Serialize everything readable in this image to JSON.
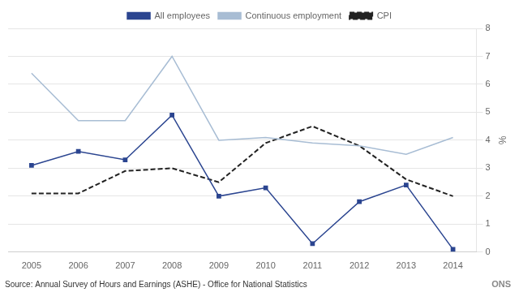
{
  "chart_data": {
    "type": "line",
    "x": [
      2005,
      2006,
      2007,
      2008,
      2009,
      2010,
      2011,
      2012,
      2013,
      2014
    ],
    "xlim": [
      2004.5,
      2014.5
    ],
    "xticks": [
      2005,
      2006,
      2007,
      2008,
      2009,
      2010,
      2011,
      2012,
      2013,
      2014
    ],
    "ylim": [
      0,
      8
    ],
    "yticks": [
      0,
      1,
      2,
      3,
      4,
      5,
      6,
      7,
      8
    ],
    "ylabel": "%",
    "series": [
      {
        "name": "All employees",
        "color": "#2B4590",
        "marker": "square",
        "line_style": "solid",
        "values": [
          3.1,
          3.6,
          3.3,
          4.9,
          2.0,
          2.3,
          0.3,
          1.8,
          2.4,
          0.1
        ]
      },
      {
        "name": "Continuous employment",
        "color": "#A8BDD4",
        "marker": "none",
        "line_style": "solid",
        "values": [
          6.4,
          4.7,
          4.7,
          7.0,
          4.0,
          4.1,
          3.9,
          3.8,
          3.5,
          4.1
        ]
      },
      {
        "name": "CPI",
        "color": "#222222",
        "marker": "none",
        "line_style": "dashed",
        "values": [
          2.1,
          2.1,
          2.9,
          3.0,
          2.5,
          3.9,
          4.5,
          3.8,
          2.6,
          2.0
        ]
      }
    ],
    "grid": "y",
    "legend": "top",
    "annotations": [
      "Source: Annual Survey of Hours and Earnings (ASHE) - Office for National Statistics",
      "ONS"
    ]
  }
}
